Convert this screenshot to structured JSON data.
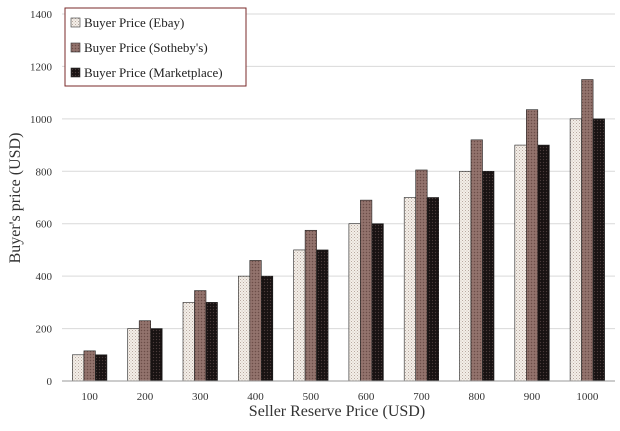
{
  "chart_data": {
    "type": "bar",
    "title": "",
    "xlabel": "Seller Reserve Price (USD)",
    "ylabel": "Buyer's price (USD)",
    "categories": [
      "100",
      "200",
      "300",
      "400",
      "500",
      "600",
      "700",
      "800",
      "900",
      "1000"
    ],
    "ylim": [
      0,
      1400
    ],
    "yticks": [
      "0",
      "200",
      "400",
      "600",
      "800",
      "1000",
      "1200",
      "1400"
    ],
    "grid": "horizontal",
    "legend_position": "top-left",
    "series": [
      {
        "name": "Buyer Price (Ebay)",
        "values": [
          100,
          200,
          300,
          400,
          500,
          600,
          700,
          800,
          900,
          1000
        ],
        "fill": "#f1ece6",
        "pattern": "light-dots"
      },
      {
        "name": "Buyer Price (Sotheby's)",
        "values": [
          115,
          230,
          345,
          460,
          575,
          690,
          805,
          920,
          1035,
          1150
        ],
        "fill": "#8c6c66",
        "pattern": "dark-dots"
      },
      {
        "name": "Buyer Price (Marketplace)",
        "values": [
          100,
          200,
          300,
          400,
          500,
          600,
          700,
          800,
          900,
          1000
        ],
        "fill": "#1a1414",
        "pattern": "black-dots"
      }
    ],
    "colors": {
      "gridline": "#d9d9d9",
      "axis": "#333333",
      "legend_border": "#7a2a2a",
      "bar_outline": "#222222",
      "text": "#333333"
    }
  }
}
